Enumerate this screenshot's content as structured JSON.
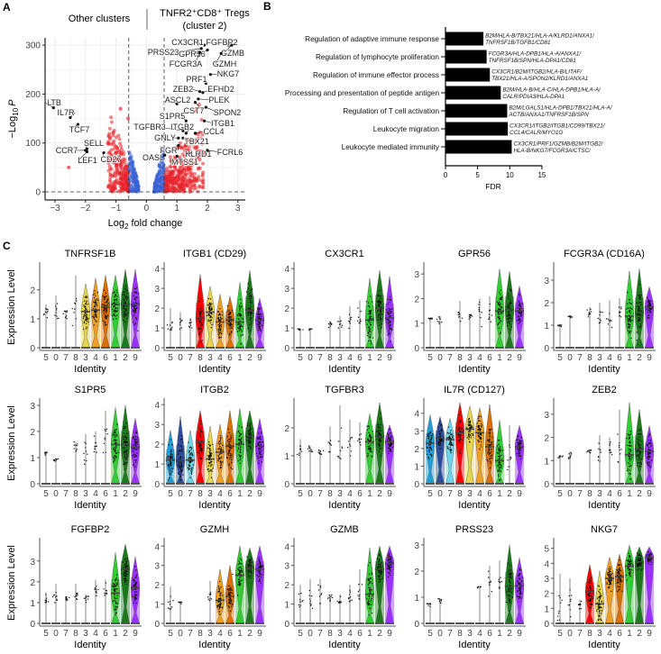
{
  "panels": {
    "a": "A",
    "b": "B",
    "c": "C"
  },
  "chart_data": [
    {
      "type": "scatter",
      "title_left": "Other clusters",
      "title_right_line1": "TNFR2⁺CD8⁺ Tregs",
      "title_right_line2": "(cluster 2)",
      "xlabel": {
        "main": "Log",
        "sub": "2",
        "rest": " fold change"
      },
      "ylabel": {
        "main": "−Log",
        "sub": "10",
        "var": "P"
      },
      "xlim": [
        -3.3,
        3.1
      ],
      "ylim": [
        -15,
        320
      ],
      "xticks": [
        "−3",
        "−2",
        "−1",
        "0",
        "1",
        "2",
        "3"
      ],
      "yticks": [
        "0",
        "100",
        "200",
        "300"
      ],
      "fc_cutoff": 0.58,
      "colors": {
        "significant": "#e8252b",
        "nonsignificant": "#3b63d6",
        "labelled": "#111111"
      },
      "labelled_genes": [
        {
          "gene": "CX3CR1",
          "fc": 1.9,
          "p": 300
        },
        {
          "gene": "FGFBP2",
          "fc": 2.7,
          "p": 300
        },
        {
          "gene": "PRSS23",
          "fc": 1.8,
          "p": 293
        },
        {
          "gene": "GPR56",
          "fc": 2.0,
          "p": 290
        },
        {
          "gene": "GZMB",
          "fc": 2.8,
          "p": 300
        },
        {
          "gene": "FCGR3A",
          "fc": 1.75,
          "p": 285
        },
        {
          "gene": "GZMH",
          "fc": 2.45,
          "p": 283
        },
        {
          "gene": "NKG7",
          "fc": 2.1,
          "p": 240
        },
        {
          "gene": "PRF1",
          "fc": 1.95,
          "p": 222
        },
        {
          "gene": "ZEB2",
          "fc": 1.75,
          "p": 205
        },
        {
          "gene": "EFHD2",
          "fc": 1.85,
          "p": 203
        },
        {
          "gene": "ASCL2",
          "fc": 1.0,
          "p": 180
        },
        {
          "gene": "PLEK",
          "fc": 1.7,
          "p": 190
        },
        {
          "gene": "CST7",
          "fc": 1.6,
          "p": 183
        },
        {
          "gene": "SPON2",
          "fc": 1.95,
          "p": 173
        },
        {
          "gene": "S1PR5",
          "fc": 1.3,
          "p": 145
        },
        {
          "gene": "ITGB1",
          "fc": 1.9,
          "p": 145
        },
        {
          "gene": "TGFBR3",
          "fc": 1.2,
          "p": 125
        },
        {
          "gene": "ITGB2",
          "fc": 1.3,
          "p": 120
        },
        {
          "gene": "CCL4",
          "fc": 1.6,
          "p": 120
        },
        {
          "gene": "GNLY",
          "fc": 1.05,
          "p": 110
        },
        {
          "gene": "TBX21",
          "fc": 1.2,
          "p": 110
        },
        {
          "gene": "FGR",
          "fc": 1.05,
          "p": 95
        },
        {
          "gene": "KLRD1",
          "fc": 1.4,
          "p": 80
        },
        {
          "gene": "FCRL6",
          "fc": 2.0,
          "p": 85
        },
        {
          "gene": "OASL",
          "fc": 0.6,
          "p": 75
        },
        {
          "gene": "MTSS1",
          "fc": 1.0,
          "p": 73
        },
        {
          "gene": "LTB",
          "fc": -3.05,
          "p": 172
        },
        {
          "gene": "IL7R",
          "fc": -2.5,
          "p": 152
        },
        {
          "gene": "TCF7",
          "fc": -2.25,
          "p": 138
        },
        {
          "gene": "SELL",
          "fc": -1.95,
          "p": 88
        },
        {
          "gene": "CCR7",
          "fc": -2.0,
          "p": 85
        },
        {
          "gene": "LEF1",
          "fc": -1.95,
          "p": 82
        },
        {
          "gene": "CD27",
          "fc": -1.4,
          "p": 80
        }
      ]
    },
    {
      "type": "bar",
      "orientation": "horizontal",
      "xlabel": "FDR",
      "xlim": [
        0,
        15
      ],
      "xticks": [
        "0",
        "5",
        "10",
        "15"
      ],
      "categories": [
        "Regulation of adaptive immune response",
        "Regulation of lymphocyte proliferation",
        "Regulation of immune effector process",
        "Processing and presentation of peptide antigen",
        "Regulation of T cell activation",
        "Leukocyte migration",
        "Leukocyte mediated immunity"
      ],
      "values": [
        5.9,
        6.4,
        6.9,
        8.6,
        9.6,
        9.7,
        10.3
      ],
      "genes": [
        [
          "B2M/HLA-B/TBX21/HLA-A/KLRD1/ANXA1/",
          "TNFRSF1B/TGFB1/CD81"
        ],
        [
          "FCGR3A/HLA-DPB1/HLA-A/ANXA1/",
          "TNFRSF1B/SPN/HLA-DPA1/CD81"
        ],
        [
          "CX3CR1/B2M/ITGB2/HLA-B/LITAF/",
          "TBX21/HLA-A/SPON2/KLRD1/ANXA1"
        ],
        [
          "B2M/HLA-B/HLA-C/HLA-DPB1/HLA-A/",
          "CALR/PDIA3/HLA-DPA1"
        ],
        [
          "B2M/LGALS1/HLA-DPB1/TBX21/HLA-A/",
          "ACTB/ANXA1/TNFRSF1B/SPN"
        ],
        [
          "CX3CR1/ITGB2/ITGB1/CD99/TBX21/",
          "CCL4/CALR/MYO1G"
        ],
        [
          "CX3CR1/PRF1/GZMB/B2M/ITGB2/",
          "HLA-B/NKG7/FCGR3A/CTSC/"
        ]
      ],
      "bar_color": "#000000"
    },
    {
      "type": "violin",
      "xlabel": "Identity",
      "ylabel": "Expression Level",
      "clusters": [
        "5",
        "0",
        "7",
        "8",
        "3",
        "4",
        "6",
        "1",
        "2",
        "9"
      ],
      "cluster_colors": [
        "#1e9fd8",
        "#2b4da0",
        "#6fd6ec",
        "#ff0000",
        "#e8d44d",
        "#f0a020",
        "#d97000",
        "#33cc33",
        "#1a7a1a",
        "#9b30ff"
      ],
      "genes": [
        {
          "title": "TNFRSF1B",
          "ylim": 2.8,
          "max": [
            1.5,
            1.8,
            1.3,
            2.5,
            2.2,
            2.4,
            2.5,
            2.5,
            2.7,
            2.7
          ],
          "median": [
            1.25,
            1.3,
            1.15,
            1.4,
            1.25,
            1.3,
            1.4,
            1.5,
            1.5,
            1.5
          ],
          "violin": [
            0,
            0,
            0,
            0,
            1,
            1,
            1,
            1,
            1,
            1
          ]
        },
        {
          "title": "ITGB1 (CD29)",
          "ylim": 4.1,
          "max": [
            2.0,
            1.8,
            1.5,
            3.7,
            3.1,
            2.7,
            2.6,
            3.3,
            3.9,
            2.5
          ],
          "median": [
            1.1,
            1.3,
            1.2,
            1.5,
            1.8,
            1.3,
            1.4,
            1.3,
            1.9,
            1.4
          ],
          "violin": [
            0,
            0,
            0,
            1,
            1,
            1,
            1,
            1,
            1,
            1
          ]
        },
        {
          "title": "CX3CR1",
          "ylim": 4.1,
          "max": [
            0.95,
            0.95,
            0.05,
            1.3,
            1.6,
            2.1,
            2.4,
            3.5,
            3.9,
            3.6
          ],
          "median": [
            0.95,
            0.95,
            0,
            1.2,
            1.2,
            1.35,
            1.5,
            1.4,
            2.0,
            1.5
          ],
          "violin": [
            0,
            0,
            0,
            0,
            0,
            0,
            0,
            1,
            1,
            1
          ]
        },
        {
          "title": "GPR56",
          "ylim": 3.3,
          "max": [
            1.2,
            1.25,
            0.05,
            1.9,
            1.35,
            2.0,
            2.1,
            3.2,
            3.1,
            2.5
          ],
          "median": [
            1.2,
            1.1,
            0,
            1.3,
            1.3,
            1.3,
            1.4,
            1.5,
            1.55,
            1.5
          ],
          "violin": [
            0,
            0,
            0,
            0,
            0,
            0,
            0,
            1,
            1,
            1
          ]
        },
        {
          "title": "FCGR3A (CD16A)",
          "ylim": 3.6,
          "max": [
            1.0,
            1.4,
            0.05,
            1.8,
            2.0,
            2.1,
            2.2,
            3.4,
            3.5,
            2.7
          ],
          "median": [
            1.0,
            1.4,
            0,
            1.5,
            1.3,
            1.3,
            1.5,
            1.4,
            1.55,
            1.8
          ],
          "violin": [
            0,
            0,
            0,
            0,
            0,
            0,
            0,
            1,
            1,
            1
          ]
        },
        {
          "title": "S1PR5",
          "ylim": 3.1,
          "max": [
            1.2,
            0.95,
            0.05,
            1.6,
            1.9,
            2.0,
            2.8,
            2.9,
            3.0,
            2.5
          ],
          "median": [
            1.2,
            0.95,
            0,
            1.4,
            1.2,
            1.4,
            1.5,
            1.5,
            1.5,
            1.4
          ],
          "violin": [
            0,
            0,
            0,
            0,
            0,
            0,
            0,
            1,
            1,
            1
          ]
        },
        {
          "title": "ITGB2",
          "ylim": 4.1,
          "max": [
            2.7,
            3.4,
            2.7,
            3.7,
            2.9,
            3.0,
            3.7,
            3.8,
            3.7,
            3.3
          ],
          "median": [
            1.2,
            1.15,
            1.2,
            2.1,
            1.25,
            1.6,
            1.9,
            2.0,
            2.4,
            1.9
          ],
          "violin": [
            1,
            1,
            1,
            1,
            1,
            1,
            1,
            1,
            1,
            1
          ]
        },
        {
          "title": "TGFBR3",
          "ylim": 2.9,
          "max": [
            1.6,
            1.35,
            1.2,
            2.05,
            2.8,
            2.3,
            2.2,
            2.5,
            2.9,
            2.1
          ],
          "median": [
            1.2,
            1.2,
            1.15,
            1.4,
            1.3,
            1.4,
            1.6,
            1.5,
            1.7,
            1.5
          ],
          "violin": [
            0,
            0,
            0,
            0,
            0,
            0,
            0,
            1,
            1,
            1
          ]
        },
        {
          "title": "IL7R (CD127)",
          "ylim": 4.6,
          "max": [
            3.9,
            3.8,
            3.7,
            4.6,
            4.4,
            4.3,
            4.5,
            3.6,
            3.3,
            3.3
          ],
          "median": [
            2.3,
            2.6,
            2.5,
            2.9,
            3.1,
            2.9,
            2.1,
            1.3,
            1.6,
            2.1
          ],
          "violin": [
            1,
            1,
            1,
            1,
            1,
            1,
            1,
            1,
            0,
            1
          ]
        },
        {
          "title": "ZEB2",
          "ylim": 3.5,
          "max": [
            1.2,
            1.4,
            0.05,
            1.45,
            2.1,
            2.0,
            3.2,
            3.5,
            3.2,
            2.5
          ],
          "median": [
            1.2,
            1.2,
            0,
            1.4,
            1.3,
            1.4,
            1.6,
            1.25,
            1.5,
            1.4
          ],
          "violin": [
            0,
            0,
            0,
            0,
            0,
            0,
            0,
            1,
            1,
            1
          ]
        },
        {
          "title": "FGFBP2",
          "ylim": 3.9,
          "max": [
            1.5,
            1.9,
            1.3,
            1.9,
            1.4,
            2.1,
            2.1,
            3.4,
            3.8,
            3.2
          ],
          "median": [
            1.15,
            1.3,
            1.2,
            1.35,
            1.2,
            1.6,
            1.5,
            1.45,
            2.6,
            1.7
          ],
          "violin": [
            0,
            0,
            0,
            0,
            0,
            0,
            0,
            1,
            1,
            1
          ]
        },
        {
          "title": "GZMH",
          "ylim": 4.2,
          "max": [
            1.9,
            1.1,
            0.05,
            0.05,
            2.2,
            2.8,
            3.0,
            4.0,
            3.9,
            4.0
          ],
          "median": [
            1.1,
            1.1,
            0,
            0,
            1.4,
            1.2,
            1.4,
            2.5,
            2.9,
            2.8
          ],
          "violin": [
            0,
            0,
            0,
            0,
            0,
            1,
            1,
            1,
            1,
            1
          ]
        },
        {
          "title": "GZMB",
          "ylim": 4.2,
          "max": [
            2.0,
            2.3,
            2.3,
            1.5,
            1.5,
            2.0,
            2.8,
            3.9,
            4.0,
            4.0
          ],
          "median": [
            1.2,
            1.3,
            1.5,
            1.3,
            1.2,
            1.3,
            1.6,
            1.5,
            2.8,
            3.1
          ],
          "violin": [
            0,
            0,
            0,
            0,
            0,
            0,
            0,
            1,
            1,
            1
          ]
        },
        {
          "title": "PRSS23",
          "ylim": 3.1,
          "max": [
            0.75,
            0.95,
            0.05,
            0.05,
            0.05,
            1.4,
            2.2,
            2.4,
            3.0,
            2.5
          ],
          "median": [
            0.75,
            0.9,
            0,
            0,
            0,
            1.4,
            1.4,
            1.4,
            1.4,
            1.45
          ],
          "violin": [
            0,
            0,
            0,
            0,
            0,
            0,
            0,
            0,
            1,
            1
          ]
        },
        {
          "title": "NKG7",
          "ylim": 5.4,
          "max": [
            3.3,
            3.0,
            1.6,
            3.9,
            3.5,
            4.4,
            4.6,
            5.2,
            5.1,
            5.1
          ],
          "median": [
            1.2,
            1.3,
            1.2,
            2.1,
            1.3,
            3.0,
            3.1,
            3.8,
            4.1,
            4.4
          ],
          "violin": [
            0,
            0,
            0,
            1,
            1,
            1,
            1,
            1,
            1,
            1
          ]
        }
      ]
    }
  ]
}
